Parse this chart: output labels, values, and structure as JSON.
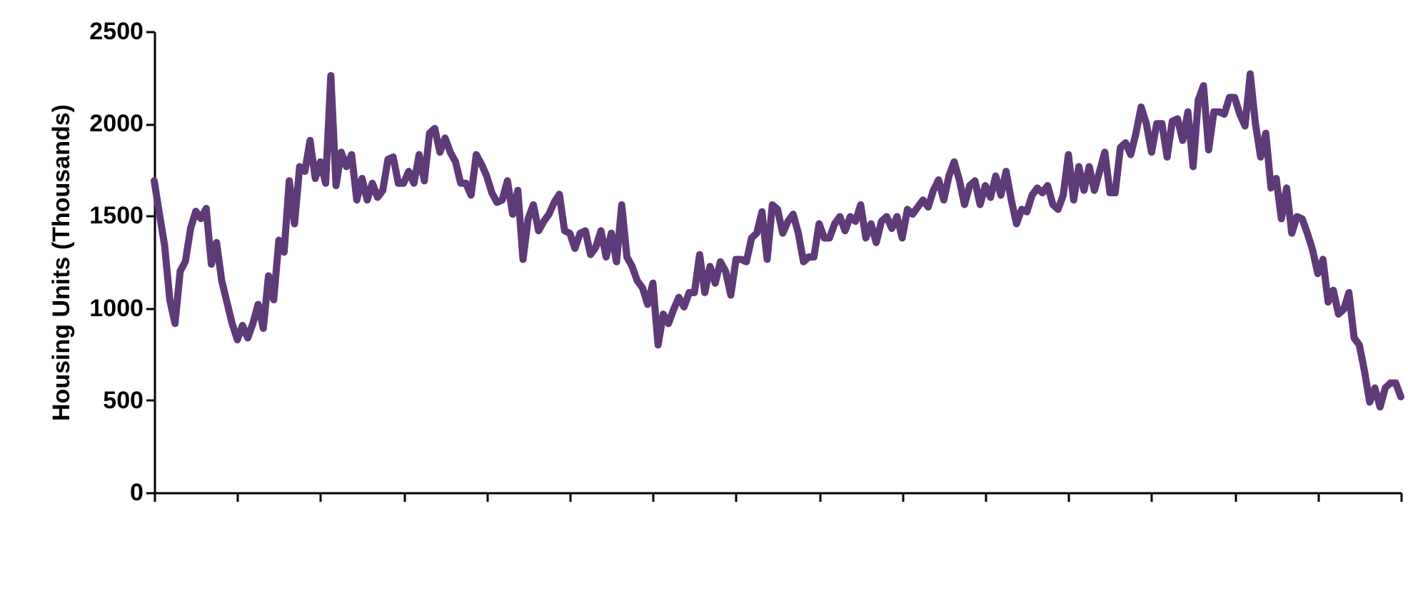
{
  "chart_data": {
    "type": "line",
    "ylabel": "Housing Units (Thousands)",
    "ylim": [
      0,
      2500
    ],
    "yticks": [
      0,
      500,
      1000,
      1500,
      2000,
      2500
    ],
    "grid": false,
    "tick_labels": "y",
    "marker": "none",
    "line_style": "solid",
    "categories": [
      null,
      null,
      null,
      null,
      null,
      null,
      null,
      null,
      null,
      null,
      null,
      null,
      null,
      null,
      null,
      null,
      null,
      null,
      null,
      null,
      null,
      null,
      null,
      null,
      null,
      null,
      null,
      null,
      null,
      null,
      null,
      null,
      null,
      null,
      null,
      null,
      null,
      null,
      null,
      null,
      null,
      null,
      null,
      null,
      null,
      null,
      null,
      null,
      null,
      null,
      null,
      null,
      null,
      null,
      null,
      null,
      null,
      null,
      null,
      null,
      null,
      null,
      null,
      null,
      null,
      null,
      null,
      null,
      null,
      null,
      null,
      null,
      null,
      null,
      null,
      null,
      null,
      null,
      null,
      null,
      null,
      null,
      null,
      null,
      null,
      null,
      null,
      null,
      null,
      null,
      null,
      null,
      null,
      null,
      null,
      null,
      null,
      null,
      null,
      null,
      null,
      null,
      null,
      null,
      null,
      null,
      null,
      null,
      null,
      null,
      null,
      null,
      null,
      null,
      null,
      null,
      null,
      null,
      null,
      null,
      null,
      null,
      null,
      null,
      null,
      null,
      null,
      null,
      null,
      null,
      null,
      null,
      null,
      null,
      null,
      null,
      null,
      null,
      null,
      null,
      null,
      null,
      null,
      null,
      null,
      null,
      null,
      null,
      null,
      null,
      null,
      null,
      null,
      null,
      null,
      null,
      null,
      null,
      null,
      null,
      null,
      null,
      null,
      null,
      null,
      null,
      null,
      null,
      null,
      null,
      null,
      null,
      null,
      null,
      null,
      null,
      null,
      null,
      null,
      null,
      null,
      null,
      null,
      null,
      null,
      null,
      null,
      null,
      null,
      null,
      null,
      null,
      null,
      null,
      null,
      null,
      null,
      null,
      null,
      null,
      null,
      null,
      null,
      null,
      null,
      null,
      null,
      null,
      null,
      null,
      null,
      null,
      null,
      null,
      null,
      null,
      null,
      null,
      null,
      null,
      null,
      null,
      null,
      null,
      null,
      null,
      null,
      null,
      null,
      null,
      null,
      null,
      null,
      null,
      null,
      null,
      null,
      null,
      null,
      null,
      null
    ],
    "series": [
      {
        "color": "#5f3a78",
        "values": [
          1690,
          1510,
          1340,
          1045,
          916,
          1200,
          1253,
          1432,
          1525,
          1485,
          1540,
          1238,
          1355,
          1148,
          1032,
          916,
          828,
          906,
          838,
          916,
          1020,
          890,
          1175,
          1045,
          1368,
          1303,
          1690,
          1457,
          1767,
          1741,
          1909,
          1703,
          1793,
          1677,
          2260,
          1664,
          1845,
          1767,
          1832,
          1586,
          1703,
          1586,
          1677,
          1600,
          1638,
          1806,
          1819,
          1677,
          1677,
          1741,
          1677,
          1832,
          1690,
          1948,
          1974,
          1845,
          1922,
          1845,
          1793,
          1677,
          1677,
          1612,
          1832,
          1780,
          1716,
          1625,
          1573,
          1586,
          1690,
          1509,
          1638,
          1264,
          1486,
          1560,
          1419,
          1470,
          1509,
          1573,
          1617,
          1419,
          1406,
          1323,
          1406,
          1419,
          1290,
          1329,
          1419,
          1277,
          1406,
          1251,
          1560,
          1277,
          1226,
          1148,
          1110,
          1020,
          1135,
          800,
          967,
          916,
          993,
          1058,
          1006,
          1084,
          1084,
          1290,
          1084,
          1226,
          1135,
          1251,
          1200,
          1070,
          1264,
          1264,
          1251,
          1380,
          1406,
          1522,
          1264,
          1560,
          1535,
          1406,
          1470,
          1509,
          1406,
          1251,
          1277,
          1277,
          1457,
          1380,
          1380,
          1457,
          1496,
          1419,
          1496,
          1470,
          1560,
          1380,
          1457,
          1355,
          1470,
          1496,
          1432,
          1496,
          1380,
          1535,
          1509,
          1548,
          1586,
          1548,
          1638,
          1695,
          1586,
          1716,
          1793,
          1695,
          1561,
          1664,
          1690,
          1561,
          1664,
          1600,
          1716,
          1612,
          1741,
          1586,
          1457,
          1535,
          1522,
          1612,
          1651,
          1625,
          1664,
          1561,
          1535,
          1612,
          1832,
          1586,
          1767,
          1638,
          1767,
          1638,
          1741,
          1845,
          1625,
          1625,
          1870,
          1896,
          1832,
          1948,
          2090,
          2000,
          1845,
          2000,
          2000,
          1819,
          2013,
          2026,
          1909,
          2064,
          1767,
          2128,
          2206,
          1858,
          2064,
          2064,
          2051,
          2142,
          2142,
          2051,
          1987,
          2270,
          2000,
          1819,
          1948,
          1651,
          1703,
          1484,
          1651,
          1406,
          1496,
          1484,
          1406,
          1316,
          1187,
          1264,
          1032,
          1097,
          967,
          993,
          1084,
          838,
          800,
          658,
          490,
          567,
          464,
          567,
          594,
          594,
          519
        ]
      }
    ]
  }
}
